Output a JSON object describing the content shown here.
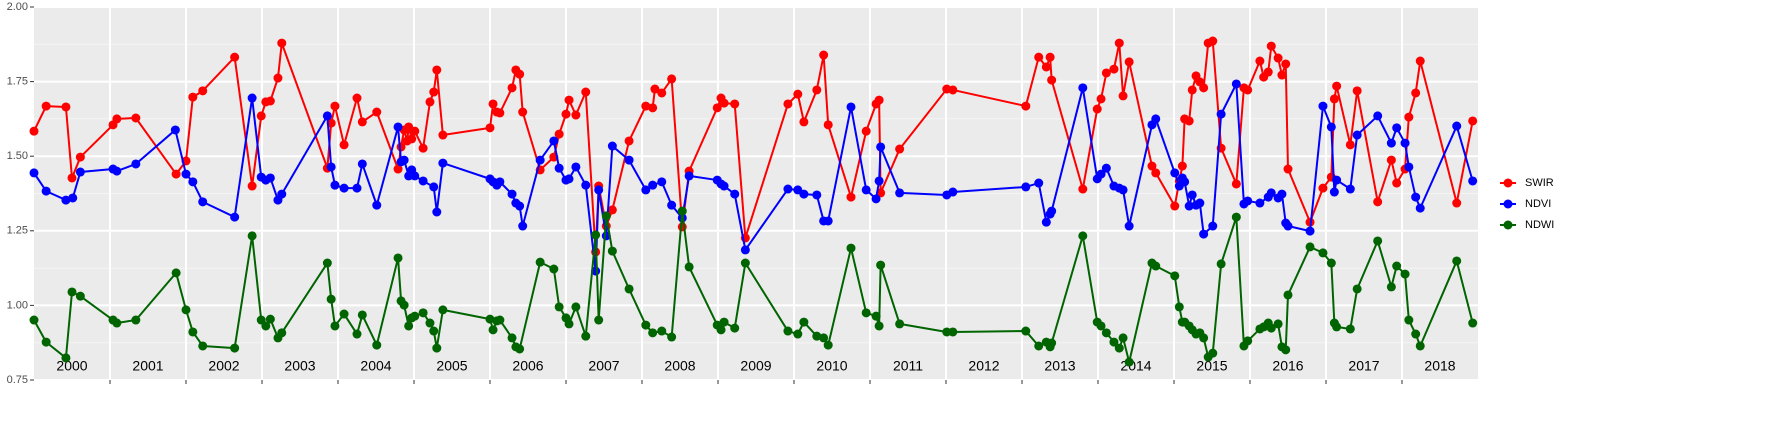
{
  "chart_data": {
    "type": "line",
    "xlim": [
      2000,
      2019
    ],
    "xticks": [
      2001,
      2002,
      2003,
      2004,
      2005,
      2006,
      2007,
      2008,
      2009,
      2010,
      2011,
      2012,
      2013,
      2014,
      2015,
      2016,
      2017,
      2018
    ],
    "year_labels": [
      2000,
      2001,
      2002,
      2003,
      2004,
      2005,
      2006,
      2007,
      2008,
      2009,
      2010,
      2011,
      2012,
      2013,
      2014,
      2015,
      2016,
      2017,
      2018
    ],
    "ylim": [
      0.75,
      2.0
    ],
    "yticks": [
      {
        "value": 0.75,
        "label": "0.75"
      },
      {
        "value": 1.0,
        "label": "1.00"
      },
      {
        "value": 1.25,
        "label": "1.25"
      },
      {
        "value": 1.5,
        "label": "1.50"
      },
      {
        "value": 1.75,
        "label": "1.75"
      },
      {
        "value": 2.0,
        "label": "2.00"
      }
    ],
    "grid": true,
    "legend": "right",
    "series": [
      {
        "name": "SWIR",
        "color": "#ff0000",
        "x": [
          2000.0,
          2000.16,
          2000.42,
          2000.5,
          2000.61,
          2001.04,
          2001.09,
          2001.34,
          2001.87,
          2002.0,
          2002.09,
          2002.22,
          2002.64,
          2002.87,
          2002.99,
          2003.05,
          2003.11,
          2003.21,
          2003.26,
          2003.86,
          2003.91,
          2003.96,
          2004.08,
          2004.25,
          2004.32,
          2004.51,
          2004.79,
          2004.83,
          2004.87,
          2004.91,
          2004.93,
          2004.97,
          2005.01,
          2005.12,
          2005.21,
          2005.26,
          2005.3,
          2005.38,
          2006.0,
          2006.04,
          2006.09,
          2006.13,
          2006.29,
          2006.34,
          2006.39,
          2006.43,
          2006.66,
          2006.84,
          2006.91,
          2007.0,
          2007.04,
          2007.13,
          2007.26,
          2007.39,
          2007.43,
          2007.53,
          2007.61,
          2007.83,
          2008.05,
          2008.14,
          2008.17,
          2008.26,
          2008.39,
          2008.53,
          2008.62,
          2008.99,
          2009.04,
          2009.08,
          2009.22,
          2009.36,
          2009.92,
          2010.05,
          2010.13,
          2010.3,
          2010.39,
          2010.45,
          2010.75,
          2010.95,
          2011.08,
          2011.12,
          2011.14,
          2011.39,
          2012.01,
          2012.09,
          2013.05,
          2013.22,
          2013.32,
          2013.37,
          2013.39,
          2013.8,
          2013.99,
          2014.04,
          2014.11,
          2014.21,
          2014.28,
          2014.33,
          2014.41,
          2014.71,
          2014.76,
          2015.01,
          2015.07,
          2015.11,
          2015.14,
          2015.2,
          2015.24,
          2015.29,
          2015.34,
          2015.39,
          2015.45,
          2015.51,
          2015.62,
          2015.82,
          2015.92,
          2015.97,
          2016.13,
          2016.18,
          2016.24,
          2016.28,
          2016.37,
          2016.42,
          2016.47,
          2016.5,
          2016.79,
          2016.96,
          2017.07,
          2017.11,
          2017.14,
          2017.32,
          2017.41,
          2017.68,
          2017.86,
          2017.93,
          2018.04,
          2018.09,
          2018.18,
          2018.24,
          2018.72,
          2018.93
        ],
        "values": [
          1.584,
          1.668,
          1.665,
          1.427,
          1.497,
          1.605,
          1.625,
          1.628,
          1.44,
          1.484,
          1.698,
          1.719,
          1.832,
          1.4,
          1.635,
          1.682,
          1.685,
          1.762,
          1.879,
          1.46,
          1.611,
          1.668,
          1.538,
          1.695,
          1.615,
          1.648,
          1.457,
          1.531,
          1.588,
          1.551,
          1.598,
          1.558,
          1.584,
          1.527,
          1.682,
          1.715,
          1.789,
          1.571,
          1.595,
          1.675,
          1.648,
          1.645,
          1.729,
          1.789,
          1.775,
          1.648,
          1.454,
          1.497,
          1.574,
          1.641,
          1.688,
          1.638,
          1.715,
          1.179,
          1.4,
          1.266,
          1.32,
          1.551,
          1.668,
          1.662,
          1.725,
          1.712,
          1.759,
          1.263,
          1.45,
          1.662,
          1.695,
          1.678,
          1.675,
          1.226,
          1.675,
          1.708,
          1.615,
          1.722,
          1.839,
          1.605,
          1.363,
          1.584,
          1.675,
          1.688,
          1.377,
          1.524,
          1.725,
          1.722,
          1.668,
          1.832,
          1.799,
          1.832,
          1.755,
          1.39,
          1.658,
          1.692,
          1.779,
          1.792,
          1.879,
          1.702,
          1.816,
          1.467,
          1.444,
          1.333,
          1.417,
          1.467,
          1.625,
          1.618,
          1.722,
          1.769,
          1.749,
          1.729,
          1.879,
          1.886,
          1.527,
          1.407,
          1.729,
          1.722,
          1.819,
          1.765,
          1.782,
          1.869,
          1.829,
          1.772,
          1.809,
          1.457,
          1.279,
          1.393,
          1.43,
          1.692,
          1.735,
          1.538,
          1.719,
          1.347,
          1.487,
          1.41,
          1.457,
          1.631,
          1.712,
          1.819,
          1.343,
          1.618
        ]
      },
      {
        "name": "NDVI",
        "color": "#0000ff",
        "x": [
          2000.0,
          2000.16,
          2000.42,
          2000.51,
          2000.61,
          2001.04,
          2001.09,
          2001.34,
          2001.86,
          2002.0,
          2002.09,
          2002.22,
          2002.64,
          2002.87,
          2002.99,
          2003.05,
          2003.11,
          2003.21,
          2003.26,
          2003.86,
          2003.91,
          2003.96,
          2004.08,
          2004.25,
          2004.32,
          2004.51,
          2004.79,
          2004.83,
          2004.87,
          2004.93,
          2004.97,
          2005.01,
          2005.12,
          2005.26,
          2005.3,
          2005.38,
          2006.0,
          2006.04,
          2006.09,
          2006.13,
          2006.29,
          2006.34,
          2006.39,
          2006.43,
          2006.66,
          2006.84,
          2006.91,
          2007.0,
          2007.04,
          2007.13,
          2007.26,
          2007.39,
          2007.43,
          2007.53,
          2007.61,
          2007.83,
          2008.05,
          2008.14,
          2008.26,
          2008.39,
          2008.53,
          2008.62,
          2008.99,
          2009.04,
          2009.08,
          2009.22,
          2009.36,
          2009.92,
          2010.05,
          2010.13,
          2010.3,
          2010.39,
          2010.45,
          2010.75,
          2010.95,
          2011.08,
          2011.12,
          2011.14,
          2011.39,
          2012.01,
          2012.09,
          2013.05,
          2013.22,
          2013.32,
          2013.37,
          2013.39,
          2013.8,
          2013.99,
          2014.04,
          2014.11,
          2014.21,
          2014.28,
          2014.33,
          2014.41,
          2014.71,
          2014.76,
          2015.01,
          2015.07,
          2015.11,
          2015.14,
          2015.2,
          2015.24,
          2015.29,
          2015.34,
          2015.39,
          2015.51,
          2015.62,
          2015.82,
          2015.92,
          2015.97,
          2016.13,
          2016.24,
          2016.28,
          2016.37,
          2016.42,
          2016.47,
          2016.5,
          2016.79,
          2016.96,
          2017.07,
          2017.11,
          2017.14,
          2017.32,
          2017.41,
          2017.68,
          2017.86,
          2017.93,
          2018.04,
          2018.09,
          2018.18,
          2018.24,
          2018.72,
          2018.93
        ],
        "values": [
          1.444,
          1.383,
          1.353,
          1.36,
          1.447,
          1.457,
          1.45,
          1.474,
          1.588,
          1.44,
          1.414,
          1.347,
          1.296,
          1.695,
          1.43,
          1.42,
          1.427,
          1.353,
          1.373,
          1.635,
          1.464,
          1.403,
          1.393,
          1.393,
          1.474,
          1.336,
          1.598,
          1.481,
          1.487,
          1.434,
          1.454,
          1.434,
          1.417,
          1.397,
          1.313,
          1.477,
          1.424,
          1.414,
          1.403,
          1.414,
          1.373,
          1.343,
          1.333,
          1.266,
          1.487,
          1.551,
          1.46,
          1.42,
          1.424,
          1.464,
          1.403,
          1.115,
          1.387,
          1.233,
          1.534,
          1.487,
          1.387,
          1.403,
          1.414,
          1.336,
          1.293,
          1.434,
          1.42,
          1.407,
          1.4,
          1.373,
          1.186,
          1.39,
          1.387,
          1.373,
          1.37,
          1.283,
          1.283,
          1.665,
          1.387,
          1.357,
          1.417,
          1.531,
          1.377,
          1.37,
          1.38,
          1.397,
          1.41,
          1.279,
          1.306,
          1.316,
          1.729,
          1.424,
          1.44,
          1.46,
          1.4,
          1.393,
          1.387,
          1.266,
          1.605,
          1.625,
          1.444,
          1.4,
          1.427,
          1.414,
          1.333,
          1.37,
          1.336,
          1.343,
          1.239,
          1.266,
          1.641,
          1.742,
          1.34,
          1.35,
          1.343,
          1.363,
          1.377,
          1.36,
          1.373,
          1.276,
          1.266,
          1.249,
          1.668,
          1.598,
          1.38,
          1.42,
          1.39,
          1.571,
          1.635,
          1.544,
          1.595,
          1.544,
          1.464,
          1.363,
          1.326,
          1.601,
          1.417
        ]
      },
      {
        "name": "NDWI",
        "color": "#006400",
        "x": [
          2000.0,
          2000.16,
          2000.42,
          2000.5,
          2000.61,
          2001.04,
          2001.09,
          2001.34,
          2001.87,
          2002.0,
          2002.09,
          2002.22,
          2002.64,
          2002.87,
          2002.99,
          2003.05,
          2003.11,
          2003.21,
          2003.26,
          2003.86,
          2003.91,
          2003.96,
          2004.08,
          2004.25,
          2004.32,
          2004.51,
          2004.79,
          2004.83,
          2004.87,
          2004.93,
          2004.97,
          2005.01,
          2005.12,
          2005.21,
          2005.26,
          2005.3,
          2005.38,
          2006.0,
          2006.04,
          2006.09,
          2006.13,
          2006.29,
          2006.34,
          2006.39,
          2006.66,
          2006.84,
          2006.91,
          2007.0,
          2007.04,
          2007.13,
          2007.26,
          2007.39,
          2007.43,
          2007.53,
          2007.61,
          2007.83,
          2008.05,
          2008.14,
          2008.26,
          2008.39,
          2008.53,
          2008.62,
          2008.99,
          2009.04,
          2009.08,
          2009.22,
          2009.36,
          2009.92,
          2010.05,
          2010.13,
          2010.3,
          2010.39,
          2010.45,
          2010.75,
          2010.95,
          2011.08,
          2011.12,
          2011.14,
          2011.39,
          2012.01,
          2012.09,
          2013.05,
          2013.22,
          2013.32,
          2013.37,
          2013.39,
          2013.8,
          2013.99,
          2014.04,
          2014.11,
          2014.21,
          2014.28,
          2014.33,
          2014.41,
          2014.71,
          2014.76,
          2015.01,
          2015.07,
          2015.11,
          2015.14,
          2015.2,
          2015.24,
          2015.29,
          2015.34,
          2015.39,
          2015.45,
          2015.51,
          2015.62,
          2015.82,
          2015.92,
          2015.97,
          2016.13,
          2016.18,
          2016.24,
          2016.28,
          2016.37,
          2016.42,
          2016.47,
          2016.5,
          2016.79,
          2016.96,
          2017.07,
          2017.11,
          2017.14,
          2017.32,
          2017.41,
          2017.68,
          2017.86,
          2017.93,
          2018.04,
          2018.09,
          2018.18,
          2018.24,
          2018.72,
          2018.93
        ],
        "values": [
          0.951,
          0.877,
          0.824,
          1.045,
          1.031,
          0.951,
          0.941,
          0.951,
          1.109,
          0.985,
          0.911,
          0.864,
          0.857,
          1.233,
          0.951,
          0.931,
          0.954,
          0.891,
          0.908,
          1.142,
          1.021,
          0.931,
          0.971,
          0.904,
          0.968,
          0.867,
          1.159,
          1.015,
          1.001,
          0.931,
          0.958,
          0.964,
          0.975,
          0.941,
          0.914,
          0.857,
          0.985,
          0.954,
          0.918,
          0.948,
          0.951,
          0.891,
          0.861,
          0.854,
          1.145,
          1.122,
          0.995,
          0.958,
          0.938,
          0.995,
          0.897,
          1.236,
          0.951,
          1.3,
          1.182,
          1.055,
          0.934,
          0.908,
          0.914,
          0.894,
          1.316,
          1.129,
          0.934,
          0.918,
          0.944,
          0.924,
          1.142,
          0.914,
          0.904,
          0.944,
          0.897,
          0.891,
          0.867,
          1.192,
          0.975,
          0.964,
          0.931,
          1.135,
          0.938,
          0.911,
          0.911,
          0.914,
          0.864,
          0.877,
          0.861,
          0.874,
          1.233,
          0.944,
          0.931,
          0.908,
          0.877,
          0.857,
          0.891,
          0.81,
          1.142,
          1.132,
          1.099,
          0.995,
          0.944,
          0.944,
          0.931,
          0.918,
          0.904,
          0.908,
          0.891,
          0.827,
          0.84,
          1.139,
          1.296,
          0.864,
          0.881,
          0.921,
          0.928,
          0.941,
          0.924,
          0.938,
          0.861,
          0.851,
          1.035,
          1.196,
          1.176,
          1.142,
          0.941,
          0.928,
          0.921,
          1.055,
          1.216,
          1.062,
          1.132,
          1.105,
          0.951,
          0.904,
          0.864,
          1.149,
          0.941
        ]
      }
    ]
  }
}
